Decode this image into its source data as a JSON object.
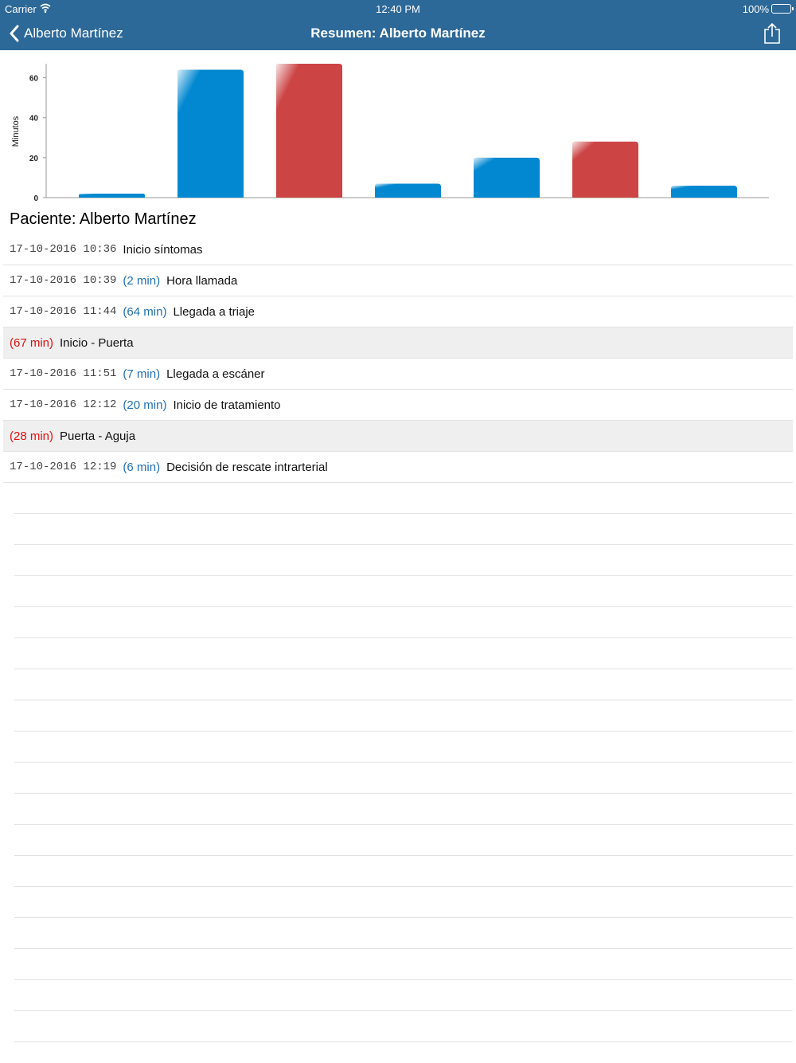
{
  "status_bar": {
    "carrier": "Carrier",
    "time": "12:40 PM",
    "battery": "100%"
  },
  "nav": {
    "back_label": "Alberto Martínez",
    "title": "Resumen: Alberto Martínez",
    "share_icon": "share-icon",
    "back_icon": "chevron-left-icon",
    "bar_color": "#2c6898"
  },
  "chart_data": {
    "type": "bar",
    "ylabel": "Minutos",
    "xlabel": "",
    "ylim": [
      0,
      67
    ],
    "yticks": [
      0,
      20,
      40,
      60
    ],
    "values": [
      2,
      64,
      67,
      7,
      20,
      28,
      6
    ],
    "colors": [
      "#0288d1",
      "#0288d1",
      "#cc4444",
      "#0288d1",
      "#0288d1",
      "#cc4444",
      "#0288d1"
    ]
  },
  "patient_title": "Paciente: Alberto Martínez",
  "events": [
    {
      "timestamp": "17-10-2016 10:36",
      "duration": "",
      "event": "Inicio síntomas",
      "summary": false
    },
    {
      "timestamp": "17-10-2016 10:39",
      "duration": "(2 min)",
      "event": "Hora llamada",
      "summary": false
    },
    {
      "timestamp": "17-10-2016 11:44",
      "duration": "(64 min)",
      "event": "Llegada a triaje",
      "summary": false
    },
    {
      "timestamp": "",
      "duration": "(67 min)",
      "event": "Inicio - Puerta",
      "summary": true
    },
    {
      "timestamp": "17-10-2016 11:51",
      "duration": "(7 min)",
      "event": "Llegada a escáner",
      "summary": false
    },
    {
      "timestamp": "17-10-2016 12:12",
      "duration": "(20 min)",
      "event": "Inicio de tratamiento",
      "summary": false
    },
    {
      "timestamp": "",
      "duration": "(28 min)",
      "event": "Puerta - Aguja",
      "summary": true
    },
    {
      "timestamp": "17-10-2016 12:19",
      "duration": "(6 min)",
      "event": "Decisión de rescate intrarterial",
      "summary": false
    }
  ]
}
